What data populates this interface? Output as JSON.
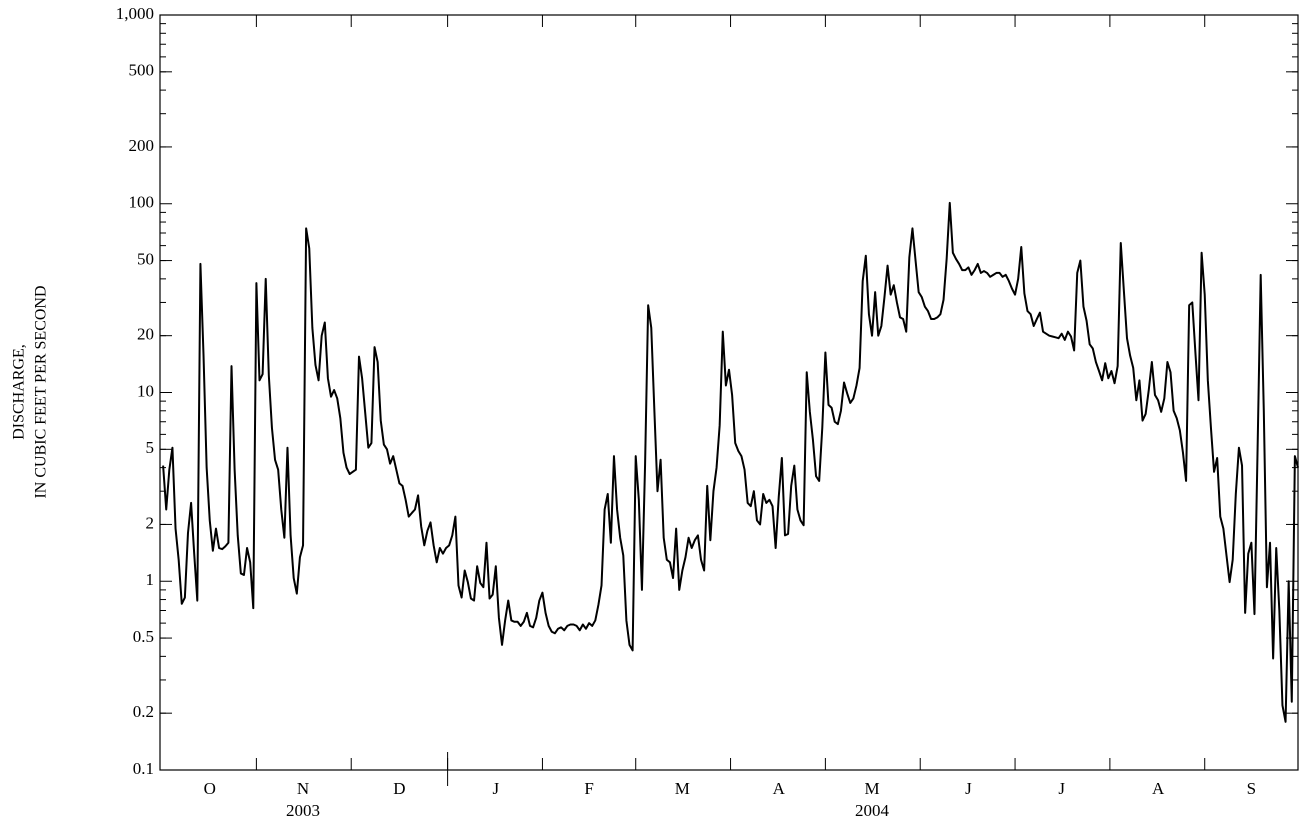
{
  "chart_data": {
    "type": "line",
    "log_scale": true,
    "color": "#000000",
    "ylabel": [
      "DISCHARGE,",
      "IN CUBIC FEET PER SECOND"
    ],
    "ylim": [
      0.1,
      1000
    ],
    "yticks": [
      0.1,
      0.2,
      0.5,
      1,
      2,
      5,
      10,
      20,
      50,
      100,
      200,
      500,
      {
        "value": 1000,
        "label": "1,000"
      }
    ],
    "xlim": [
      0,
      366
    ],
    "xticks": [
      {
        "value": 16,
        "label": "O"
      },
      {
        "value": 46,
        "label": "N"
      },
      {
        "value": 77,
        "label": "D"
      },
      {
        "value": 108,
        "label": "J"
      },
      {
        "value": 138,
        "label": "F"
      },
      {
        "value": 168,
        "label": "M"
      },
      {
        "value": 199,
        "label": "A"
      },
      {
        "value": 229,
        "label": "M"
      },
      {
        "value": 260,
        "label": "J"
      },
      {
        "value": 290,
        "label": "J"
      },
      {
        "value": 321,
        "label": "A"
      },
      {
        "value": 351,
        "label": "S"
      }
    ],
    "years": [
      {
        "value": 46,
        "label": "2003"
      },
      {
        "value": 229,
        "label": "2004"
      }
    ],
    "x": [
      1,
      2,
      3,
      4,
      5,
      6,
      7,
      8,
      9,
      10,
      11,
      12,
      13,
      14,
      15,
      16,
      17,
      18,
      19,
      20,
      21,
      22,
      23,
      24,
      25,
      26,
      27,
      28,
      29,
      30,
      31,
      32,
      33,
      34,
      35,
      36,
      37,
      38,
      39,
      40,
      41,
      42,
      43,
      44,
      45,
      46,
      47,
      48,
      49,
      50,
      51,
      52,
      53,
      54,
      55,
      56,
      57,
      58,
      59,
      60,
      61,
      62,
      63,
      64,
      65,
      66,
      67,
      68,
      69,
      70,
      71,
      72,
      73,
      74,
      75,
      76,
      77,
      78,
      79,
      80,
      81,
      82,
      83,
      84,
      85,
      86,
      87,
      88,
      89,
      90,
      91,
      92,
      93,
      94,
      95,
      96,
      97,
      98,
      99,
      100,
      101,
      102,
      103,
      104,
      105,
      106,
      107,
      108,
      109,
      110,
      111,
      112,
      113,
      114,
      115,
      116,
      117,
      118,
      119,
      120,
      121,
      122,
      123,
      124,
      125,
      126,
      127,
      128,
      129,
      130,
      131,
      132,
      133,
      134,
      135,
      136,
      137,
      138,
      139,
      140,
      141,
      142,
      143,
      144,
      145,
      146,
      147,
      148,
      149,
      150,
      151,
      152,
      153,
      154,
      155,
      156,
      157,
      158,
      159,
      160,
      161,
      162,
      163,
      164,
      165,
      166,
      167,
      168,
      169,
      170,
      171,
      172,
      173,
      174,
      175,
      176,
      177,
      178,
      179,
      180,
      181,
      182,
      183,
      184,
      185,
      186,
      187,
      188,
      189,
      190,
      191,
      192,
      193,
      194,
      195,
      196,
      197,
      198,
      199,
      200,
      201,
      202,
      203,
      204,
      205,
      206,
      207,
      208,
      209,
      210,
      211,
      212,
      213,
      214,
      215,
      216,
      217,
      218,
      219,
      220,
      221,
      222,
      223,
      224,
      225,
      226,
      227,
      228,
      229,
      230,
      231,
      232,
      233,
      234,
      235,
      236,
      237,
      238,
      239,
      240,
      241,
      242,
      243,
      244,
      245,
      246,
      247,
      248,
      249,
      250,
      251,
      252,
      253,
      254,
      255,
      256,
      257,
      258,
      259,
      260,
      261,
      262,
      263,
      264,
      265,
      266,
      267,
      268,
      269,
      270,
      271,
      272,
      273,
      274,
      275,
      276,
      277,
      278,
      279,
      280,
      281,
      282,
      283,
      284,
      285,
      286,
      287,
      288,
      289,
      290,
      291,
      292,
      293,
      294,
      295,
      296,
      297,
      298,
      299,
      300,
      301,
      302,
      303,
      304,
      305,
      306,
      307,
      308,
      309,
      310,
      311,
      312,
      313,
      314,
      315,
      316,
      317,
      318,
      319,
      320,
      321,
      322,
      323,
      324,
      325,
      326,
      327,
      328,
      329,
      330,
      331,
      332,
      333,
      334,
      335,
      336,
      337,
      338,
      339,
      340,
      341,
      342,
      343,
      344,
      345,
      346,
      347,
      348,
      349,
      350,
      351,
      352,
      353,
      354,
      355,
      356,
      357,
      358,
      359,
      360,
      361,
      362,
      363,
      364,
      365,
      366
    ],
    "values": [
      4.1,
      2.4,
      3.9,
      5.1,
      1.9,
      1.3,
      0.76,
      0.82,
      1.8,
      2.6,
      1.4,
      0.79,
      48,
      15.7,
      4.0,
      2.1,
      1.45,
      1.9,
      1.5,
      1.48,
      1.53,
      1.6,
      13.8,
      3.9,
      1.75,
      1.1,
      1.08,
      1.5,
      1.26,
      0.72,
      38,
      11.6,
      12.5,
      40,
      12.3,
      6.5,
      4.4,
      3.9,
      2.4,
      1.7,
      5.1,
      1.75,
      1.04,
      0.86,
      1.34,
      1.55,
      74,
      58,
      22,
      14,
      11.6,
      20,
      23.5,
      11.9,
      9.5,
      10.3,
      9.3,
      7.3,
      4.8,
      4.0,
      3.7,
      3.8,
      3.9,
      15.5,
      11.9,
      7.8,
      5.1,
      5.4,
      17.4,
      14.5,
      7.1,
      5.3,
      5.0,
      4.2,
      4.6,
      3.9,
      3.3,
      3.2,
      2.7,
      2.2,
      2.3,
      2.4,
      2.85,
      1.95,
      1.55,
      1.85,
      2.05,
      1.55,
      1.26,
      1.5,
      1.4,
      1.5,
      1.55,
      1.75,
      2.2,
      0.95,
      0.82,
      1.14,
      0.99,
      0.81,
      0.79,
      1.2,
      0.98,
      0.93,
      1.6,
      0.81,
      0.85,
      1.2,
      0.64,
      0.46,
      0.62,
      0.79,
      0.62,
      0.61,
      0.61,
      0.58,
      0.61,
      0.68,
      0.58,
      0.57,
      0.64,
      0.79,
      0.87,
      0.68,
      0.58,
      0.54,
      0.53,
      0.56,
      0.57,
      0.55,
      0.58,
      0.59,
      0.59,
      0.58,
      0.55,
      0.59,
      0.56,
      0.6,
      0.58,
      0.62,
      0.75,
      0.95,
      2.4,
      2.9,
      1.6,
      4.6,
      2.4,
      1.7,
      1.37,
      0.62,
      0.46,
      0.43,
      4.6,
      2.7,
      0.9,
      4.1,
      29,
      22,
      8,
      3.0,
      4.4,
      1.7,
      1.3,
      1.26,
      1.04,
      1.9,
      0.9,
      1.14,
      1.34,
      1.7,
      1.5,
      1.65,
      1.75,
      1.3,
      1.14,
      3.2,
      1.65,
      3.0,
      4.0,
      6.7,
      21,
      10.9,
      13.2,
      9.7,
      5.4,
      4.9,
      4.6,
      3.9,
      2.6,
      2.5,
      3.0,
      2.1,
      2.0,
      2.9,
      2.6,
      2.7,
      2.5,
      1.5,
      2.8,
      4.5,
      1.75,
      1.78,
      3.2,
      4.1,
      2.4,
      2.1,
      1.98,
      12.8,
      7.9,
      5.6,
      3.6,
      3.4,
      6.5,
      16.3,
      8.6,
      8.3,
      7.0,
      6.8,
      8.0,
      11.3,
      9.9,
      8.8,
      9.3,
      10.9,
      13.5,
      39,
      53,
      26,
      20,
      34,
      20,
      22.5,
      32,
      47,
      33,
      37,
      30,
      25,
      24.5,
      21,
      52,
      74,
      50,
      34,
      32,
      28.5,
      27,
      24.5,
      24.5,
      25,
      26,
      31,
      51,
      101,
      55,
      51,
      48,
      44.5,
      44.5,
      46,
      42,
      44.5,
      48,
      43,
      44,
      43,
      41,
      42,
      43,
      43,
      41,
      42,
      39,
      35.5,
      33,
      40,
      59,
      33.5,
      27,
      26,
      22.5,
      24.5,
      26.5,
      21,
      20.5,
      20,
      19.8,
      19.6,
      19.4,
      20.5,
      19,
      21,
      19.8,
      16.7,
      43,
      50,
      28.5,
      24,
      18,
      17.1,
      14.5,
      13,
      11.6,
      14.3,
      11.9,
      13,
      11.2,
      13.8,
      62,
      34.5,
      19.4,
      15.7,
      13.5,
      9.1,
      11.6,
      7.1,
      7.7,
      10.3,
      14.5,
      9.7,
      9.1,
      7.9,
      9.3,
      14.5,
      12.8,
      8.0,
      7.3,
      6.3,
      4.8,
      3.4,
      29,
      30,
      16.3,
      9.1,
      55,
      33,
      11.6,
      6.5,
      3.8,
      4.5,
      2.2,
      1.9,
      1.37,
      0.99,
      1.3,
      2.9,
      5.1,
      4.1,
      0.68,
      1.4,
      1.6,
      0.67,
      5,
      42,
      8,
      0.93,
      1.6,
      0.39,
      1.5,
      0.7,
      0.22,
      0.18,
      1.0,
      0.23,
      4.6,
      4.0
    ]
  }
}
